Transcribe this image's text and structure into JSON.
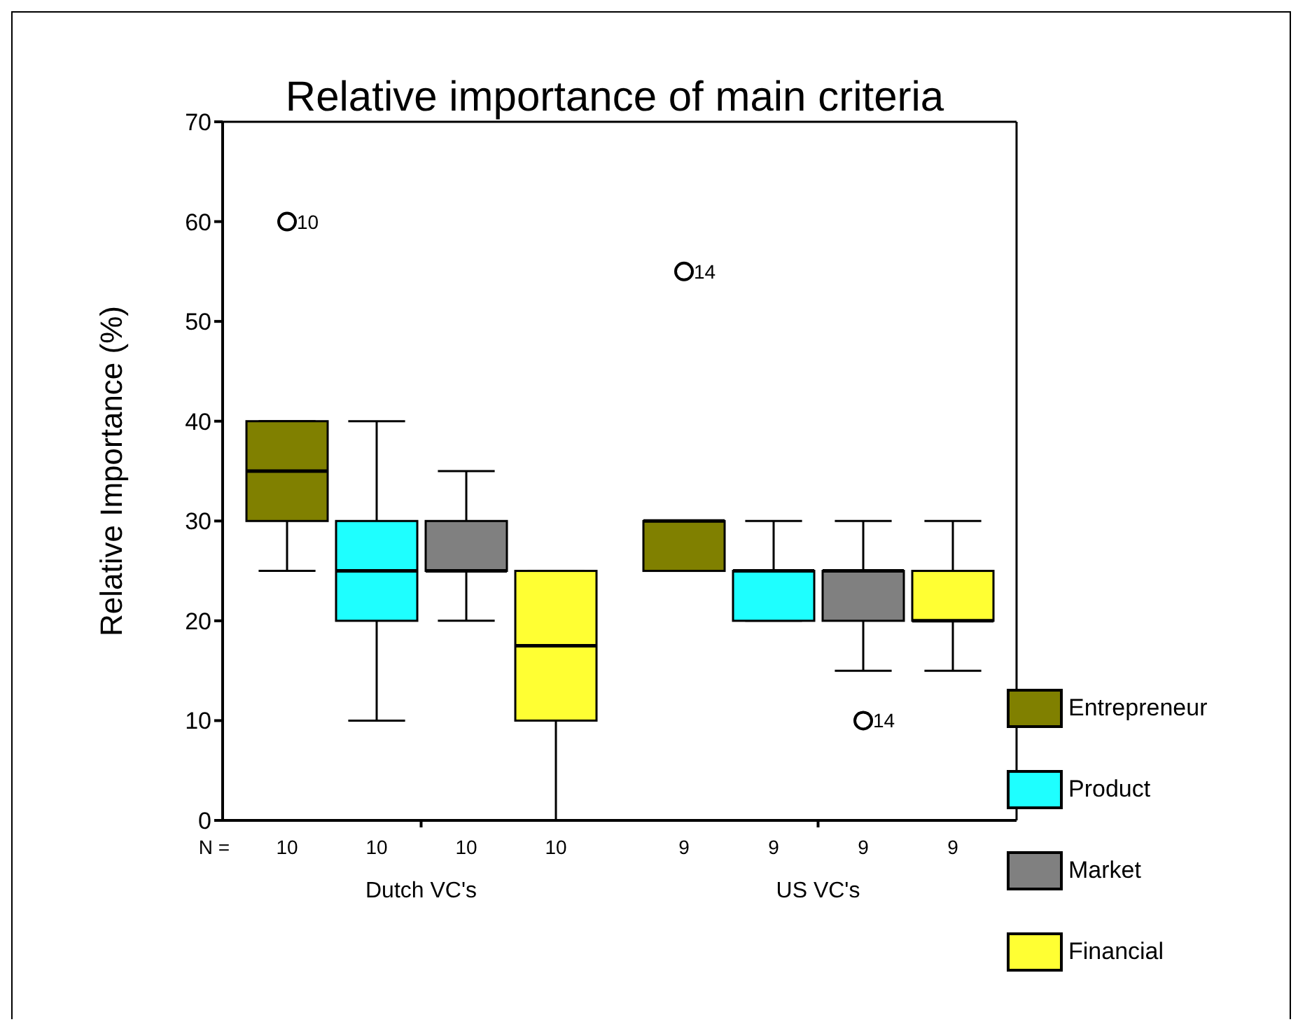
{
  "chart_data": {
    "type": "box",
    "title": "Relative importance of main criteria",
    "ylabel": "Relative Importance (%)",
    "categories": [
      "Dutch VC's",
      "US VC's"
    ],
    "ylim": [
      0,
      70
    ],
    "yticks": [
      0,
      10,
      20,
      30,
      40,
      50,
      60,
      70
    ],
    "grid": false,
    "legend": "right",
    "series": [
      {
        "name": "Entrepreneur",
        "color": "#808000",
        "boxes": [
          {
            "low": 25,
            "q1": 30,
            "median": 35,
            "q3": 40,
            "high": 40,
            "outliers": [
              60
            ]
          },
          {
            "low": 25,
            "q1": 25,
            "median": 30,
            "q3": 30,
            "high": 30,
            "outliers": [
              55
            ]
          }
        ]
      },
      {
        "name": "Product",
        "color": "#1effff",
        "boxes": [
          {
            "low": 10,
            "q1": 20,
            "median": 25,
            "q3": 30,
            "high": 40
          },
          {
            "low": 20,
            "q1": 20,
            "median": 25,
            "q3": 25,
            "high": 30
          }
        ]
      },
      {
        "name": "Market",
        "color": "#808080",
        "boxes": [
          {
            "low": 20,
            "q1": 25,
            "median": 25,
            "q3": 30,
            "high": 35
          },
          {
            "low": 15,
            "q1": 20,
            "median": 25,
            "q3": 25,
            "high": 30,
            "outliers": [
              10
            ]
          }
        ]
      },
      {
        "name": "Financial",
        "color": "#ffff33",
        "boxes": [
          {
            "low": 0,
            "q1": 10,
            "median": 17.5,
            "q3": 25,
            "high": 25
          },
          {
            "low": 15,
            "q1": 20,
            "median": 20,
            "q3": 25,
            "high": 30
          }
        ]
      }
    ],
    "annotations": [
      "N =",
      "10",
      "10",
      "10",
      "10",
      "9",
      "9",
      "9",
      "9",
      "10",
      "14",
      "14"
    ]
  }
}
